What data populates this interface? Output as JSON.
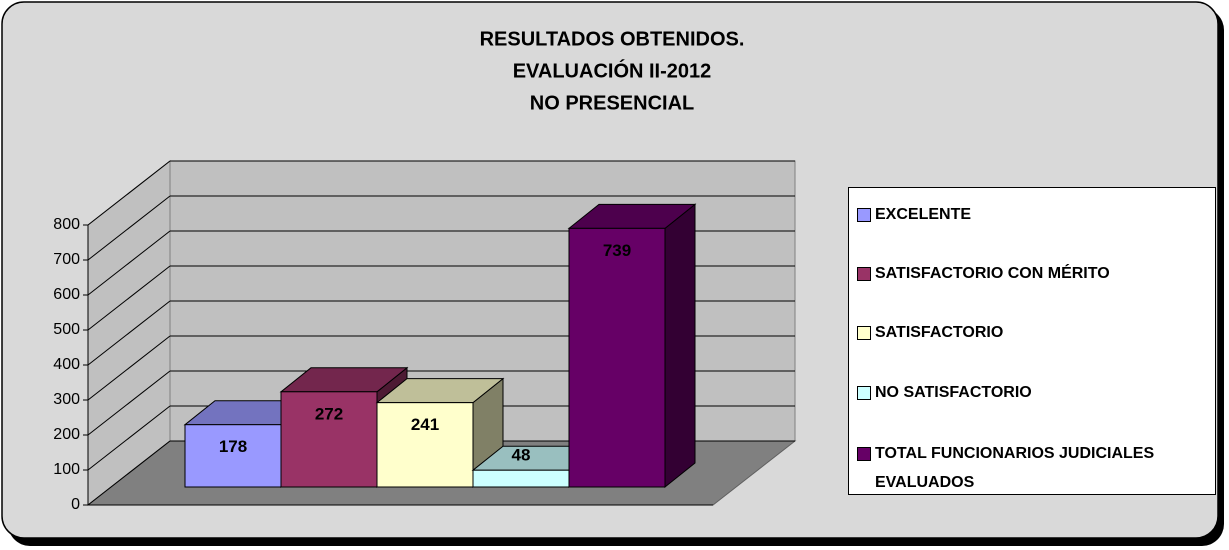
{
  "chart_data": {
    "type": "bar3d",
    "title": [
      "RESULTADOS OBTENIDOS.",
      "EVALUACIÓN II-2012",
      "NO PRESENCIAL"
    ],
    "categories": [
      "EXCELENTE",
      "SATISFACTORIO CON MÉRITO",
      "SATISFACTORIO",
      "NO SATISFACTORIO",
      "TOTAL FUNCIONARIOS JUDICIALES EVALUADOS"
    ],
    "values": [
      178,
      272,
      241,
      48,
      739
    ],
    "colors": [
      "#9999ff",
      "#993366",
      "#ffffcc",
      "#ccffff",
      "#660066"
    ],
    "ylim": [
      0,
      800
    ],
    "yticks": [
      0,
      100,
      200,
      300,
      400,
      500,
      600,
      700,
      800
    ],
    "grid": true,
    "legend": "right"
  }
}
